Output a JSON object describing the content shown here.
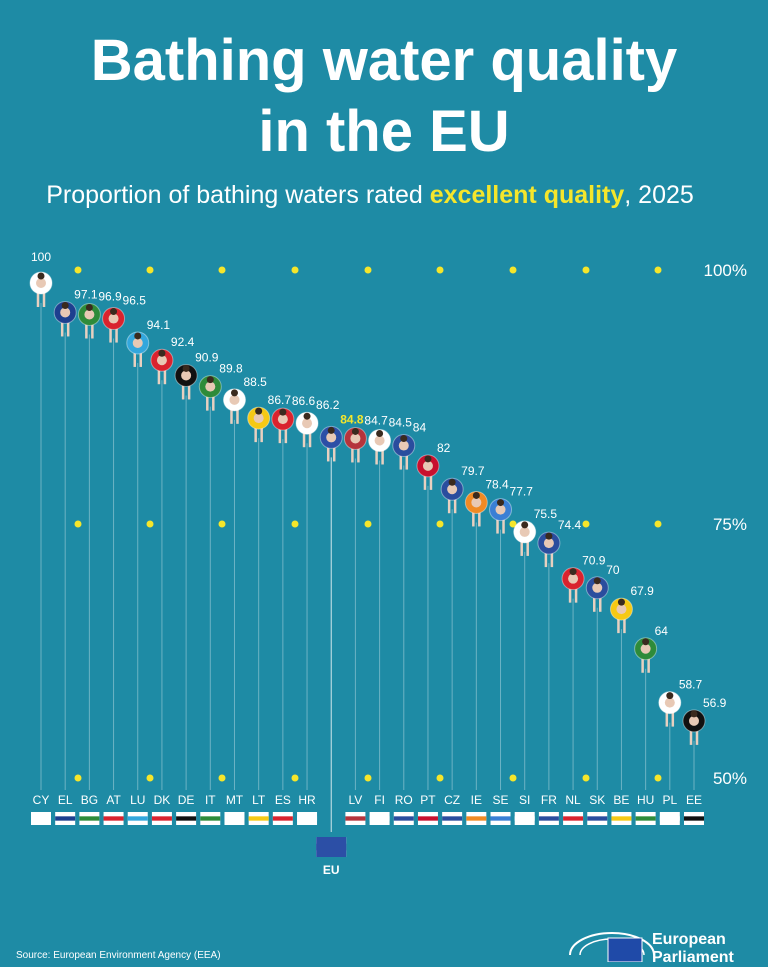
{
  "chart_data": {
    "type": "float",
    "title_lines": [
      "Bathing water quality",
      "in the EU"
    ],
    "subtitle_parts": [
      "Proportion of bathing waters rated ",
      "excellent quality",
      ", 2025"
    ],
    "categories": [
      "CY",
      "EL",
      "BG",
      "AT",
      "LU",
      "DK",
      "DE",
      "IT",
      "MT",
      "LT",
      "ES",
      "HR",
      "EU",
      "LV",
      "FI",
      "RO",
      "PT",
      "CZ",
      "IE",
      "SE",
      "SI",
      "FR",
      "NL",
      "SK",
      "BE",
      "HU",
      "PL",
      "EE"
    ],
    "values": [
      100,
      97.1,
      96.9,
      96.5,
      94.1,
      92.4,
      90.9,
      89.8,
      88.5,
      86.7,
      86.6,
      86.2,
      84.8,
      84.7,
      84.5,
      84,
      82,
      79.7,
      78.4,
      77.7,
      75.5,
      74.4,
      70.9,
      70,
      67.9,
      64,
      58.7,
      56.9
    ],
    "colors": [
      "#ffffff",
      "#1d3f8f",
      "#2e8b3a",
      "#d9232e",
      "#33a7dd",
      "#d9232e",
      "#111111",
      "#2e8b3a",
      "#ffffff",
      "#f6c915",
      "#d9232e",
      "#ffffff",
      "#2c4fa6",
      "#b5343c",
      "#ffffff",
      "#2a4d9e",
      "#c8102e",
      "#2a4d9e",
      "#f08a24",
      "#3a7fd5",
      "#ffffff",
      "#2a4d9e",
      "#d9232e",
      "#2a4d9e",
      "#f6c915",
      "#2e8b3a",
      "#ffffff",
      "#111111"
    ],
    "ylim": [
      50,
      100
    ],
    "yticks": [
      {
        "value": 100,
        "label": "100%"
      },
      {
        "value": 75,
        "label": "75%"
      },
      {
        "value": 50,
        "label": "50%"
      }
    ],
    "source": "Source: European Environment Agency (EEA)",
    "logo_lines": [
      "European",
      "Parliament"
    ]
  }
}
